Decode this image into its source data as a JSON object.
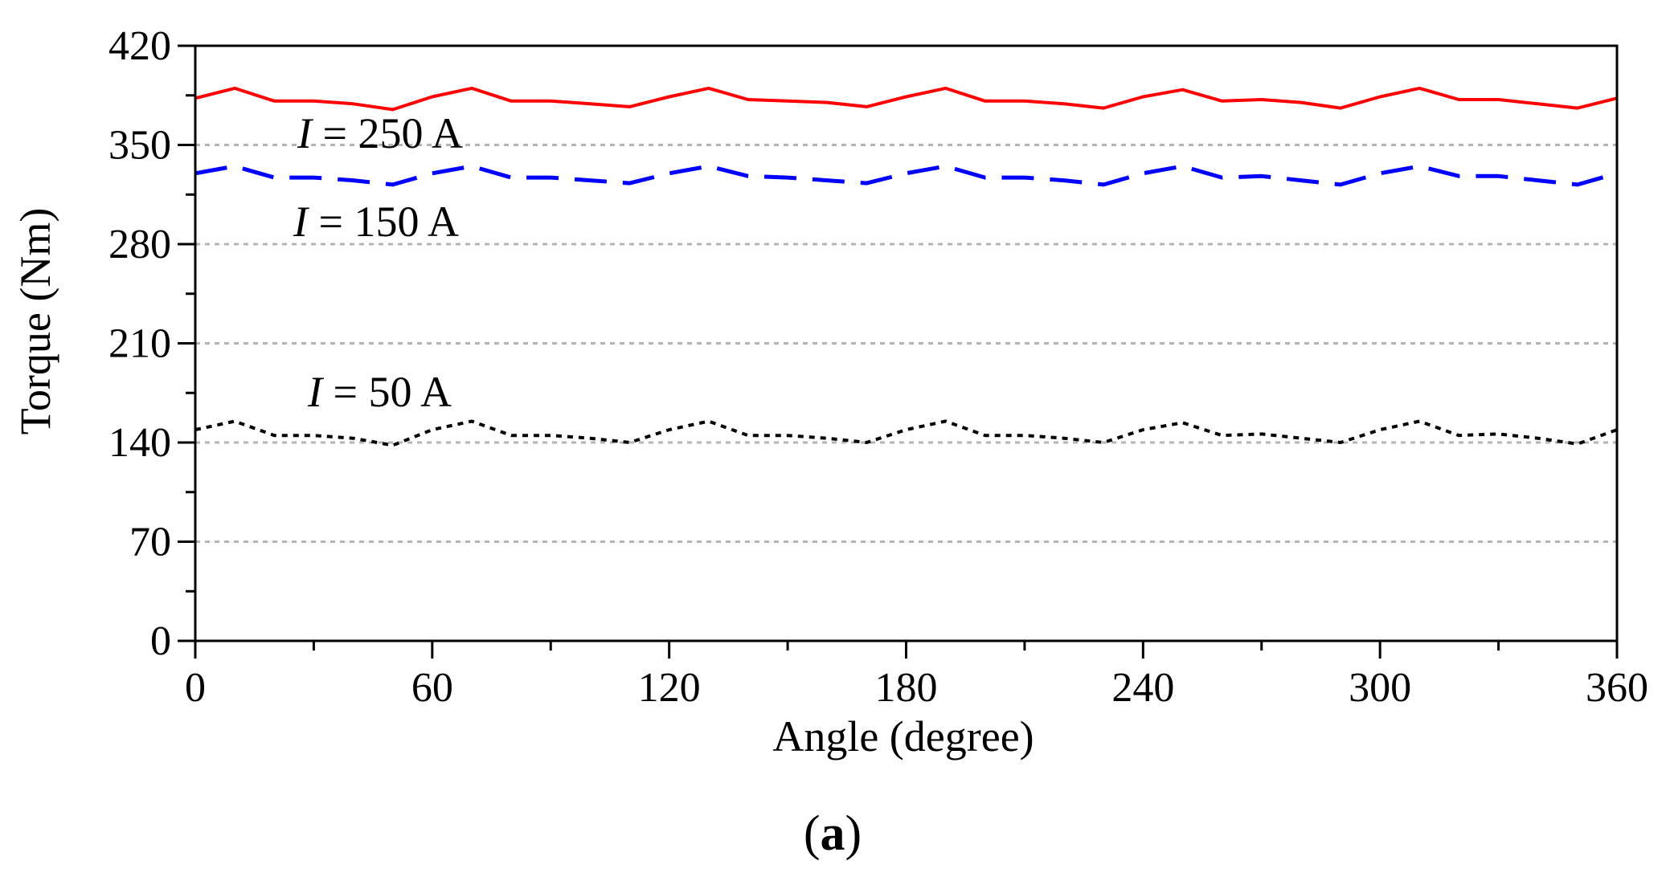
{
  "chart_data": {
    "type": "line",
    "title": "",
    "xlabel": "Angle (degree)",
    "ylabel": "Torque (Nm)",
    "xlim": [
      0,
      360
    ],
    "ylim": [
      0,
      420
    ],
    "xticks": [
      0,
      60,
      120,
      180,
      240,
      300,
      360
    ],
    "yticks": [
      0,
      70,
      140,
      210,
      280,
      350,
      420
    ],
    "grid": "horizontal dotted",
    "caption_open": "(",
    "caption_letter": "a",
    "caption_close": ")",
    "x": [
      0,
      10,
      20,
      30,
      40,
      50,
      60,
      70,
      80,
      90,
      100,
      110,
      120,
      130,
      140,
      150,
      160,
      170,
      180,
      190,
      200,
      210,
      220,
      230,
      240,
      250,
      260,
      270,
      280,
      290,
      300,
      310,
      320,
      330,
      340,
      350,
      360
    ],
    "series": [
      {
        "name": "I = 250 A",
        "label_italic": "I",
        "label_rest": " = 250 A",
        "color": "#ff0000",
        "style": "solid",
        "values": [
          383,
          390,
          381,
          381,
          379,
          375,
          384,
          390,
          381,
          381,
          379,
          377,
          384,
          390,
          382,
          381,
          380,
          377,
          384,
          390,
          381,
          381,
          379,
          376,
          384,
          389,
          381,
          382,
          380,
          376,
          384,
          390,
          382,
          382,
          379,
          376,
          383
        ]
      },
      {
        "name": "I = 150 A",
        "label_italic": "I",
        "label_rest": " = 150 A",
        "color": "#0000ff",
        "style": "dashed",
        "values": [
          330,
          335,
          327,
          327,
          325,
          322,
          330,
          335,
          327,
          327,
          325,
          323,
          330,
          335,
          328,
          327,
          325,
          323,
          330,
          335,
          327,
          327,
          325,
          322,
          330,
          335,
          327,
          328,
          325,
          322,
          330,
          335,
          328,
          328,
          325,
          322,
          330
        ]
      },
      {
        "name": "I = 50 A",
        "label_italic": "I",
        "label_rest": " = 50 A",
        "color": "#000000",
        "style": "dotted",
        "values": [
          149,
          155,
          145,
          145,
          143,
          138,
          149,
          155,
          145,
          145,
          143,
          140,
          149,
          155,
          145,
          145,
          143,
          140,
          149,
          155,
          145,
          145,
          143,
          140,
          149,
          154,
          145,
          146,
          143,
          140,
          149,
          155,
          145,
          146,
          143,
          139,
          149
        ]
      }
    ]
  }
}
